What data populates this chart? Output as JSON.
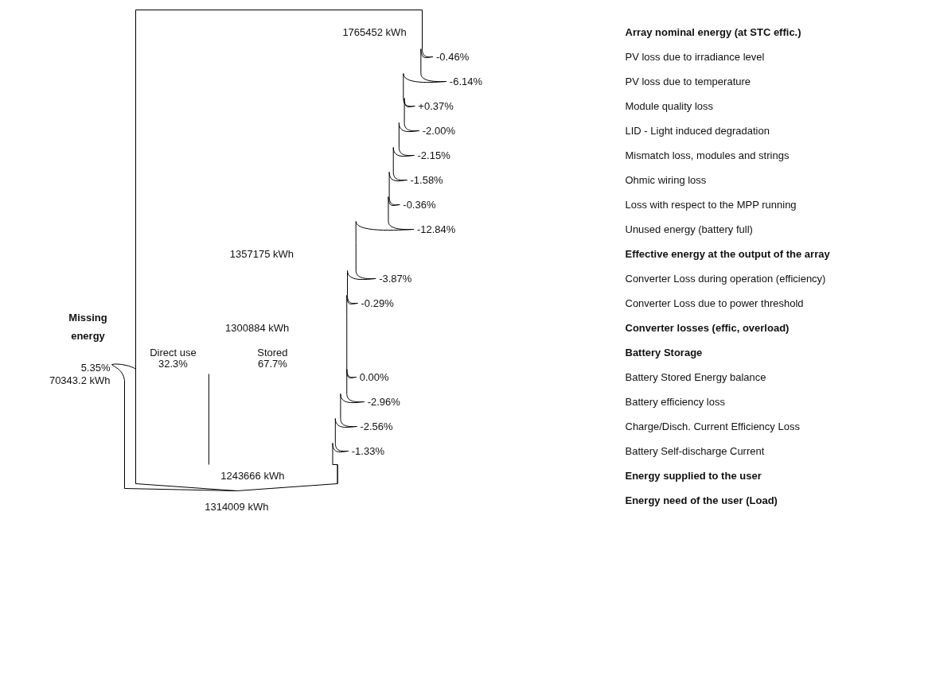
{
  "chart_data": {
    "type": "other",
    "categories": [
      "Array nominal energy (at STC effic.)",
      "PV loss due to irradiance level",
      "PV loss due to temperature",
      "Module quality loss",
      "LID - Light induced degradation",
      "Mismatch loss, modules and strings",
      "Ohmic wiring loss",
      "Loss with respect to the MPP running",
      "Unused energy (battery full)",
      "Effective energy at the output of the array",
      "Converter Loss during operation (efficiency)",
      "Converter Loss due to power threshold",
      "Converter losses (effic, overload)",
      "Battery Storage",
      "Battery Stored Energy balance",
      "Battery efficiency loss",
      "Charge/Disch. Current Efficiency Loss",
      "Battery Self-discharge Current",
      "Energy supplied to the user",
      "Energy need of the user (Load)"
    ],
    "series": [
      {
        "values": [
          1765452,
          null,
          null,
          null,
          null,
          null,
          null,
          null,
          null,
          1357175,
          null,
          null,
          1300884,
          null,
          null,
          null,
          null,
          null,
          1243666,
          1314009
        ],
        "value_labels": [
          "1765452 kWh",
          null,
          null,
          null,
          null,
          null,
          null,
          null,
          null,
          "1357175 kWh",
          null,
          null,
          "1300884 kWh",
          null,
          null,
          null,
          null,
          null,
          "1243666 kWh",
          "1314009 kWh"
        ]
      },
      {
        "values": [
          null,
          -0.46,
          -6.14,
          0.37,
          -2.0,
          -2.15,
          -1.58,
          -0.36,
          -12.84,
          null,
          -3.87,
          -0.29,
          null,
          null,
          0.0,
          -2.96,
          -2.56,
          -1.33,
          null,
          null
        ],
        "value_labels": [
          null,
          "-0.46%",
          "-6.14%",
          "+0.37%",
          "-2.00%",
          "-2.15%",
          "-1.58%",
          "-0.36%",
          "-12.84%",
          null,
          "-3.87%",
          "-0.29%",
          null,
          null,
          "0.00%",
          "-2.96%",
          "-2.56%",
          "-1.33%",
          null,
          null
        ]
      }
    ],
    "annotations": [
      "Missing energy",
      "5.35%",
      "70343.2 kWh",
      "Direct use",
      "32.3%",
      "Stored",
      "67.7%"
    ]
  }
}
